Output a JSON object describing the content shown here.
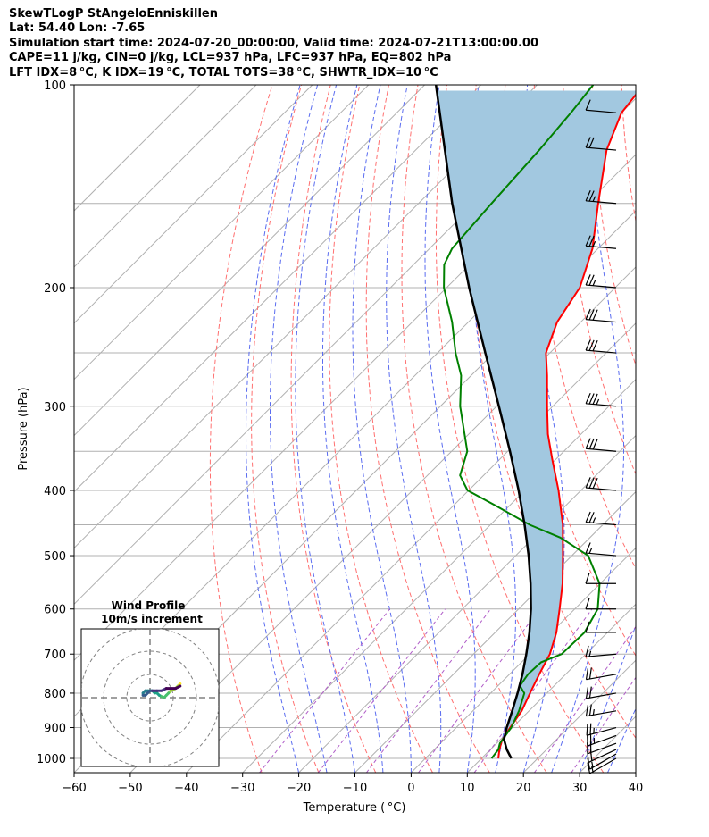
{
  "header": {
    "line1": "SkewTLogP StAngeloEnniskillen",
    "line2": "Lat: 54.40   Lon: -7.65",
    "line3": "Simulation start time: 2024-07-20_00:00:00, Valid time: 2024-07-21T13:00:00.00",
    "line4": "CAPE=11 j/kg, CIN=0 j/kg, LCL=937 hPa, LFC=937 hPa, EQ=802 hPa",
    "line5": "LFT IDX=8 °C, K IDX=19 °C, TOTAL TOTS=38 °C, SHWTR_IDX=10 °C"
  },
  "chart_data": {
    "type": "skew-t",
    "xlabel": "Temperature ( °C)",
    "ylabel": "Pressure (hPa)",
    "xlim": [
      -60,
      40
    ],
    "plim": [
      1050,
      100
    ],
    "xticks": [
      -60,
      -50,
      -40,
      -30,
      -20,
      -10,
      0,
      10,
      20,
      30,
      40
    ],
    "xtick_labels": [
      "−60",
      "−50",
      "−40",
      "−30",
      "−20",
      "−10",
      "0",
      "10",
      "20",
      "30",
      "40"
    ],
    "pticks": [
      1000,
      900,
      800,
      700,
      600,
      500,
      400,
      300,
      200,
      100
    ],
    "pgrid": [
      1000,
      900,
      800,
      700,
      600,
      500,
      400,
      300,
      200,
      100,
      150,
      250,
      350,
      450
    ],
    "colors": {
      "temperature": "#ff0000",
      "dewpoint": "#008000",
      "parcel": "#000000",
      "cape_fill": "#a2c8e0",
      "dry_adiabat": "#ff7070",
      "moist_adiabat": "#5a6cf0",
      "mixing_ratio": "#b05cc8",
      "isotherm": "#b0b0b0"
    },
    "series": [
      {
        "name": "temperature",
        "p": [
          1000,
          970,
          940,
          900,
          850,
          800,
          750,
          700,
          650,
          600,
          550,
          500,
          450,
          400,
          360,
          330,
          300,
          270,
          250,
          225,
          200,
          175,
          150,
          125,
          110,
          100
        ],
        "t": [
          13.0,
          11.6,
          10.4,
          9.6,
          8.7,
          7.0,
          5.3,
          3.6,
          0.9,
          -2.7,
          -6.7,
          -11.6,
          -17.1,
          -24.0,
          -30.6,
          -35.9,
          -41.0,
          -46.5,
          -50.7,
          -54.2,
          -56.3,
          -61.0,
          -68.0,
          -76.0,
          -80.0,
          -81.0
        ]
      },
      {
        "name": "dewpoint",
        "p": [
          1000,
          970,
          950,
          900,
          850,
          800,
          780,
          750,
          720,
          700,
          650,
          600,
          550,
          500,
          470,
          450,
          420,
          400,
          380,
          350,
          300,
          270,
          250,
          225,
          200,
          185,
          175,
          150,
          125,
          110,
          100
        ],
        "t": [
          11.8,
          11.4,
          10.6,
          9.8,
          8.2,
          6.0,
          3.9,
          3.3,
          3.5,
          5.7,
          5.9,
          4.1,
          -0.1,
          -7.1,
          -15.3,
          -23.0,
          -33.0,
          -40.2,
          -44.2,
          -47.2,
          -56.5,
          -61.8,
          -66.8,
          -72.9,
          -80.5,
          -84.5,
          -86.0,
          -87.0,
          -88.0,
          -89.0,
          -90.0
        ]
      },
      {
        "name": "parcel",
        "p": [
          1000,
          970,
          937,
          900,
          850,
          800,
          750,
          700,
          650,
          600,
          550,
          500,
          450,
          400,
          350,
          300,
          250,
          200,
          150,
          100
        ],
        "t": [
          15.3,
          12.9,
          10.6,
          9.0,
          7.0,
          4.8,
          2.3,
          -0.6,
          -3.9,
          -7.8,
          -12.4,
          -17.7,
          -23.9,
          -31.1,
          -39.6,
          -49.6,
          -61.5,
          -76.0,
          -94.0,
          -118.0
        ]
      }
    ],
    "wind_barbs": {
      "p": [
        1000,
        985,
        970,
        950,
        925,
        900,
        850,
        800,
        750,
        700,
        650,
        600,
        550,
        500,
        450,
        400,
        350,
        300,
        250,
        225,
        200,
        175,
        150,
        125,
        110
      ],
      "speed_kt": [
        15,
        15,
        20,
        20,
        25,
        25,
        25,
        20,
        20,
        15,
        10,
        10,
        10,
        15,
        25,
        30,
        30,
        35,
        30,
        30,
        25,
        25,
        25,
        20,
        10
      ],
      "direction_deg": [
        240,
        240,
        245,
        250,
        250,
        255,
        260,
        260,
        260,
        265,
        270,
        270,
        270,
        275,
        275,
        275,
        275,
        275,
        275,
        275,
        275,
        275,
        275,
        275,
        275
      ]
    },
    "inset": {
      "title_line1": "Wind Profile",
      "title_line2": "10m/s increment",
      "rings_ms": [
        10,
        20,
        30
      ],
      "u": [
        13,
        12,
        11,
        9,
        8,
        7,
        6,
        4,
        3,
        2,
        1,
        -1,
        -2,
        -3,
        -3,
        -2,
        -1,
        0,
        1,
        3,
        5,
        7,
        9,
        11,
        13
      ],
      "v": [
        6,
        5,
        4,
        3,
        2,
        1,
        0,
        1,
        2,
        2,
        3,
        3,
        3,
        2,
        1,
        1,
        2,
        3,
        3,
        3,
        3,
        4,
        4,
        4,
        5
      ]
    }
  }
}
